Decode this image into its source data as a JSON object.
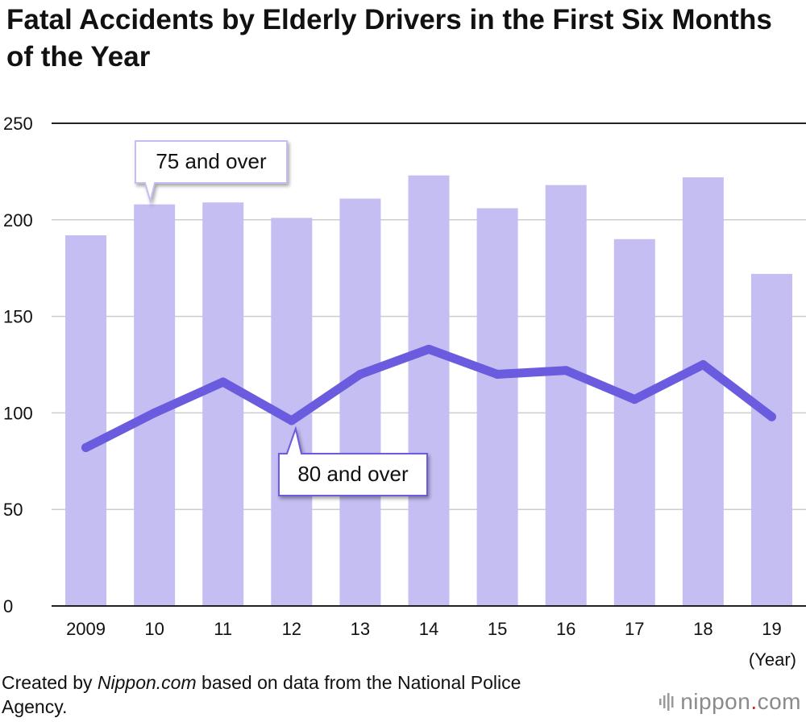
{
  "title": "Fatal Accidents by Elderly Drivers in the First Six Months of the Year",
  "source": {
    "prefix": "Created by ",
    "site": "Nippon.com",
    "suffix": " based on data from the National Police Agency."
  },
  "logo": {
    "name": "nippon",
    "dot": ".",
    "tld": "com",
    "icon": "bars-logo-icon"
  },
  "colors": {
    "bar": "#c4bef2",
    "line": "#6a5bdf",
    "grid": "#cccccc",
    "axis": "#222222"
  },
  "chart_data": {
    "type": "bar",
    "title": "Fatal Accidents by Elderly Drivers in the First Six Months of the Year",
    "xlabel": "(Year)",
    "ylabel": "",
    "categories": [
      "2009",
      "10",
      "11",
      "12",
      "13",
      "14",
      "15",
      "16",
      "17",
      "18",
      "19"
    ],
    "ylim": [
      0,
      250
    ],
    "yticks": [
      0,
      50,
      100,
      150,
      200,
      250
    ],
    "grid": true,
    "series": [
      {
        "name": "75 and over",
        "kind": "bar",
        "values": [
          192,
          208,
          209,
          201,
          211,
          223,
          206,
          218,
          190,
          222,
          172
        ]
      },
      {
        "name": "80 and over",
        "kind": "line",
        "values": [
          82,
          100,
          116,
          96,
          120,
          133,
          120,
          122,
          107,
          125,
          98
        ]
      }
    ]
  }
}
